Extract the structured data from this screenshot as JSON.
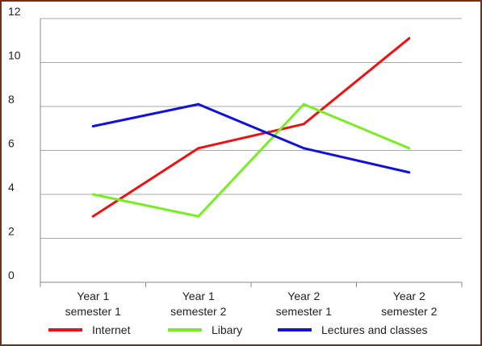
{
  "chart_data": {
    "type": "line",
    "title": "",
    "xlabel": "",
    "ylabel": "",
    "categories": [
      [
        "Year 1",
        "semester 1"
      ],
      [
        "Year 1",
        "semester 2"
      ],
      [
        "Year 2",
        "semester 1"
      ],
      [
        "Year 2",
        "semester 2"
      ]
    ],
    "ylim": [
      0,
      12
    ],
    "yticks": [
      0,
      2,
      4,
      6,
      8,
      10,
      12
    ],
    "grid": true,
    "legend_position": "bottom",
    "series": [
      {
        "name": "Internet",
        "color": "#ee1111",
        "values": [
          3,
          6.1,
          7.2,
          11.1
        ]
      },
      {
        "name": "Libary",
        "color": "#77ee22",
        "values": [
          4,
          3,
          8.1,
          6.1
        ]
      },
      {
        "name": "Lectures and classes",
        "color": "#1111dd",
        "values": [
          7.1,
          8.1,
          6.1,
          5
        ]
      }
    ]
  }
}
